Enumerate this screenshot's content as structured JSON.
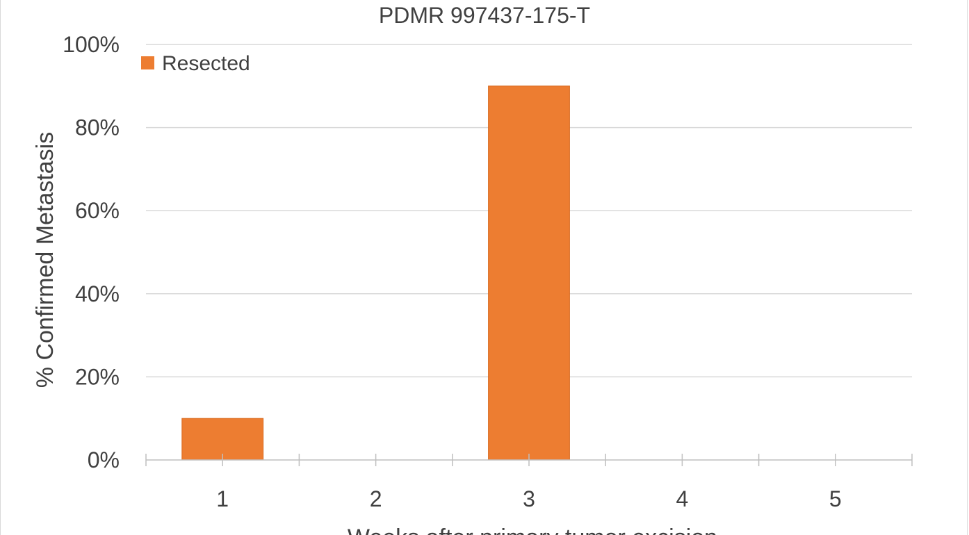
{
  "chart_data": {
    "type": "bar",
    "title": "PDMR 997437-175-T",
    "xlabel": "Weeks after primary tumor excision",
    "ylabel": "% Confirmed Metastasis",
    "categories": [
      "1",
      "2",
      "3",
      "4",
      "5"
    ],
    "series": [
      {
        "name": "Resected",
        "values": [
          10,
          0,
          90,
          0,
          0
        ],
        "color": "#ED7D31"
      }
    ],
    "ylim": [
      0,
      100
    ],
    "yticks": [
      0,
      20,
      40,
      60,
      80,
      100
    ],
    "ytick_labels": [
      "0%",
      "20%",
      "40%",
      "60%",
      "80%",
      "100%"
    ],
    "grid": true,
    "legend_position": "top-left",
    "colors": {
      "grid": "#d9d9d9",
      "axis": "#bfbfbf",
      "text": "#404040"
    }
  }
}
